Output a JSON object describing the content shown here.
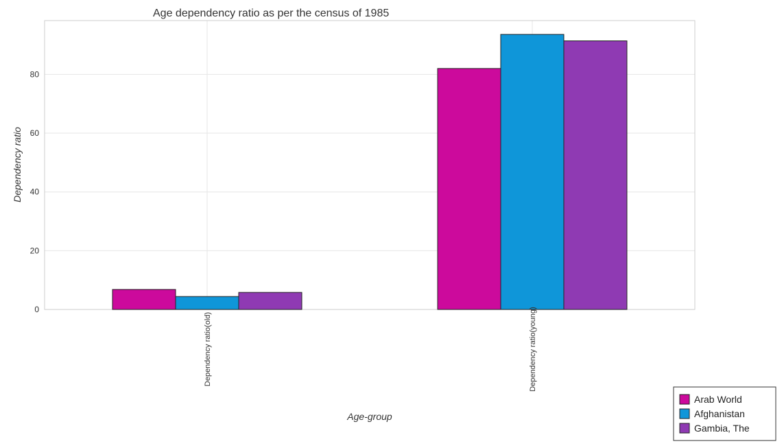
{
  "chart_data": {
    "type": "bar",
    "title": "Age dependency ratio as per the census of 1985",
    "xlabel": "Age-group",
    "ylabel": "Dependency ratio",
    "categories": [
      "Dependency ratio(old)",
      "Dependency ratio(young)"
    ],
    "series": [
      {
        "name": "Arab World",
        "color": "#cc0a9c",
        "values": [
          6.8,
          82.0
        ]
      },
      {
        "name": "Afghanistan",
        "color": "#0f96d9",
        "values": [
          4.4,
          93.6
        ]
      },
      {
        "name": "Gambia, The",
        "color": "#8f3ab3",
        "values": [
          5.8,
          91.4
        ]
      }
    ],
    "yticks": [
      0,
      20,
      40,
      60,
      80
    ],
    "ylim": [
      0,
      98.3
    ],
    "grid": true,
    "legend_position": "bottom-right"
  }
}
